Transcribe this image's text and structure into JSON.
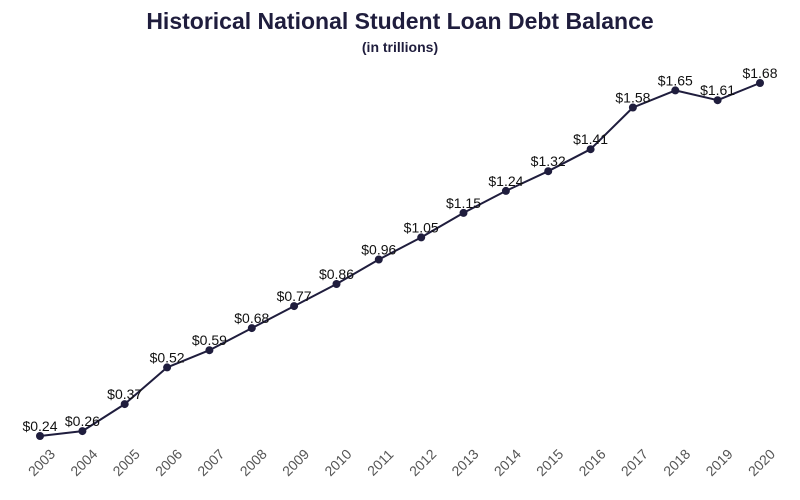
{
  "chart_data": {
    "type": "line",
    "title": "Historical National Student Loan Debt Balance",
    "subtitle": "(in trillions)",
    "xlabel": "",
    "ylabel": "",
    "grid": false,
    "x": [
      "2003",
      "2004",
      "2005",
      "2006",
      "2007",
      "2008",
      "2009",
      "2010",
      "2011",
      "2012",
      "2013",
      "2014",
      "2015",
      "2016",
      "2017",
      "2018",
      "2019",
      "2020"
    ],
    "series": [
      {
        "values": [
          0.24,
          0.26,
          0.37,
          0.52,
          0.59,
          0.68,
          0.77,
          0.86,
          0.96,
          1.05,
          1.15,
          1.24,
          1.32,
          1.41,
          1.58,
          1.65,
          1.61,
          1.68
        ]
      }
    ],
    "labels": [
      "$0.24",
      "$0.26",
      "$0.37",
      "$0.52",
      "$0.59",
      "$0.68",
      "$0.77",
      "$0.86",
      "$0.96",
      "$1.05",
      "$1.15",
      "$1.24",
      "$1.32",
      "$1.41",
      "$1.58",
      "$1.65",
      "$1.61",
      "$1.68"
    ],
    "colors": {
      "line": "#1f1d3d",
      "marker": "#1f1d3d"
    }
  }
}
